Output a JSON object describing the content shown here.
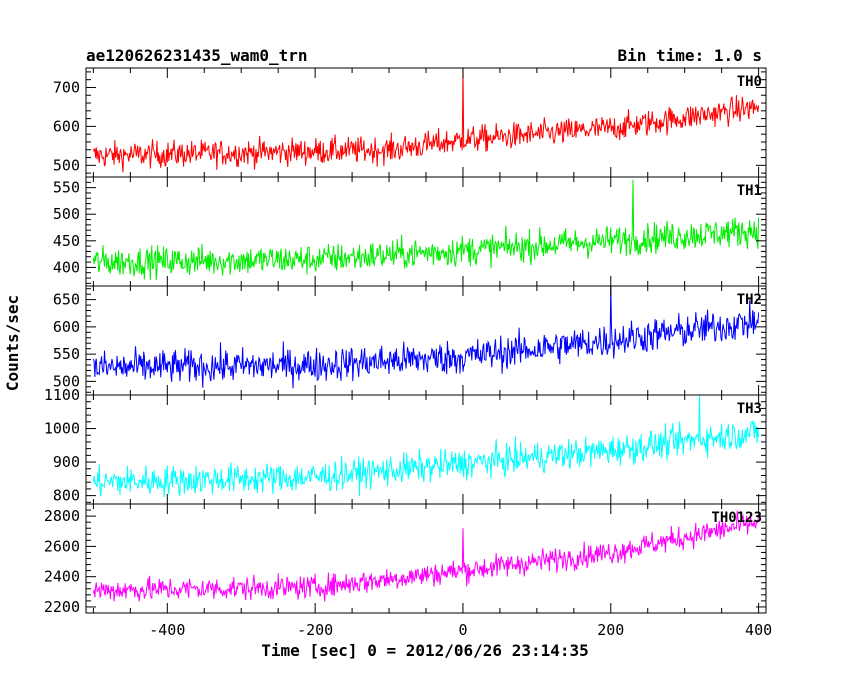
{
  "chart_data": {
    "type": "line",
    "title_left": "ae120626231435_wam0_trn",
    "title_right": "Bin time: 1.0 s",
    "xlabel": "Time [sec] 0 = 2012/06/26 23:14:35",
    "ylabel": "Counts/sec",
    "xlim": [
      -510,
      410
    ],
    "xticks": [
      -400,
      -200,
      0,
      200,
      400
    ],
    "x_start": -500,
    "x_end": 400,
    "x_step": 1,
    "panels": [
      {
        "name": "TH0",
        "color": "#ff0000",
        "ylim": [
          470,
          750
        ],
        "yticks": [
          500,
          600,
          700
        ],
        "trend": [
          [
            -500,
            525
          ],
          [
            -100,
            540
          ],
          [
            0,
            565
          ],
          [
            200,
            595
          ],
          [
            400,
            650
          ]
        ],
        "noise": 24,
        "spikes": [
          {
            "x": 0,
            "y": 750
          }
        ]
      },
      {
        "name": "TH1",
        "color": "#00ee00",
        "ylim": [
          365,
          570
        ],
        "yticks": [
          400,
          450,
          500,
          550
        ],
        "trend": [
          [
            -500,
            410
          ],
          [
            -200,
            415
          ],
          [
            0,
            432
          ],
          [
            200,
            450
          ],
          [
            400,
            470
          ]
        ],
        "noise": 20,
        "spikes": [
          {
            "x": 230,
            "y": 565
          }
        ]
      },
      {
        "name": "TH2",
        "color": "#0000ff",
        "ylim": [
          475,
          675
        ],
        "yticks": [
          500,
          550,
          600,
          650
        ],
        "trend": [
          [
            -500,
            525
          ],
          [
            -200,
            530
          ],
          [
            0,
            545
          ],
          [
            200,
            575
          ],
          [
            400,
            610
          ]
        ],
        "noise": 22,
        "spikes": [
          {
            "x": 200,
            "y": 675
          }
        ]
      },
      {
        "name": "TH3",
        "color": "#00ffff",
        "ylim": [
          775,
          1100
        ],
        "yticks": [
          800,
          900,
          1000,
          1100
        ],
        "trend": [
          [
            -500,
            840
          ],
          [
            -200,
            855
          ],
          [
            0,
            895
          ],
          [
            200,
            935
          ],
          [
            400,
            990
          ]
        ],
        "noise": 32,
        "spikes": [
          {
            "x": 320,
            "y": 1100
          }
        ]
      },
      {
        "name": "TH0123",
        "color": "#ff00ff",
        "ylim": [
          2160,
          2880
        ],
        "yticks": [
          2200,
          2400,
          2600,
          2800
        ],
        "trend": [
          [
            -500,
            2310
          ],
          [
            -200,
            2330
          ],
          [
            0,
            2440
          ],
          [
            200,
            2560
          ],
          [
            400,
            2760
          ]
        ],
        "noise": 55,
        "spikes": [
          {
            "x": 0,
            "y": 2720
          }
        ]
      }
    ]
  }
}
